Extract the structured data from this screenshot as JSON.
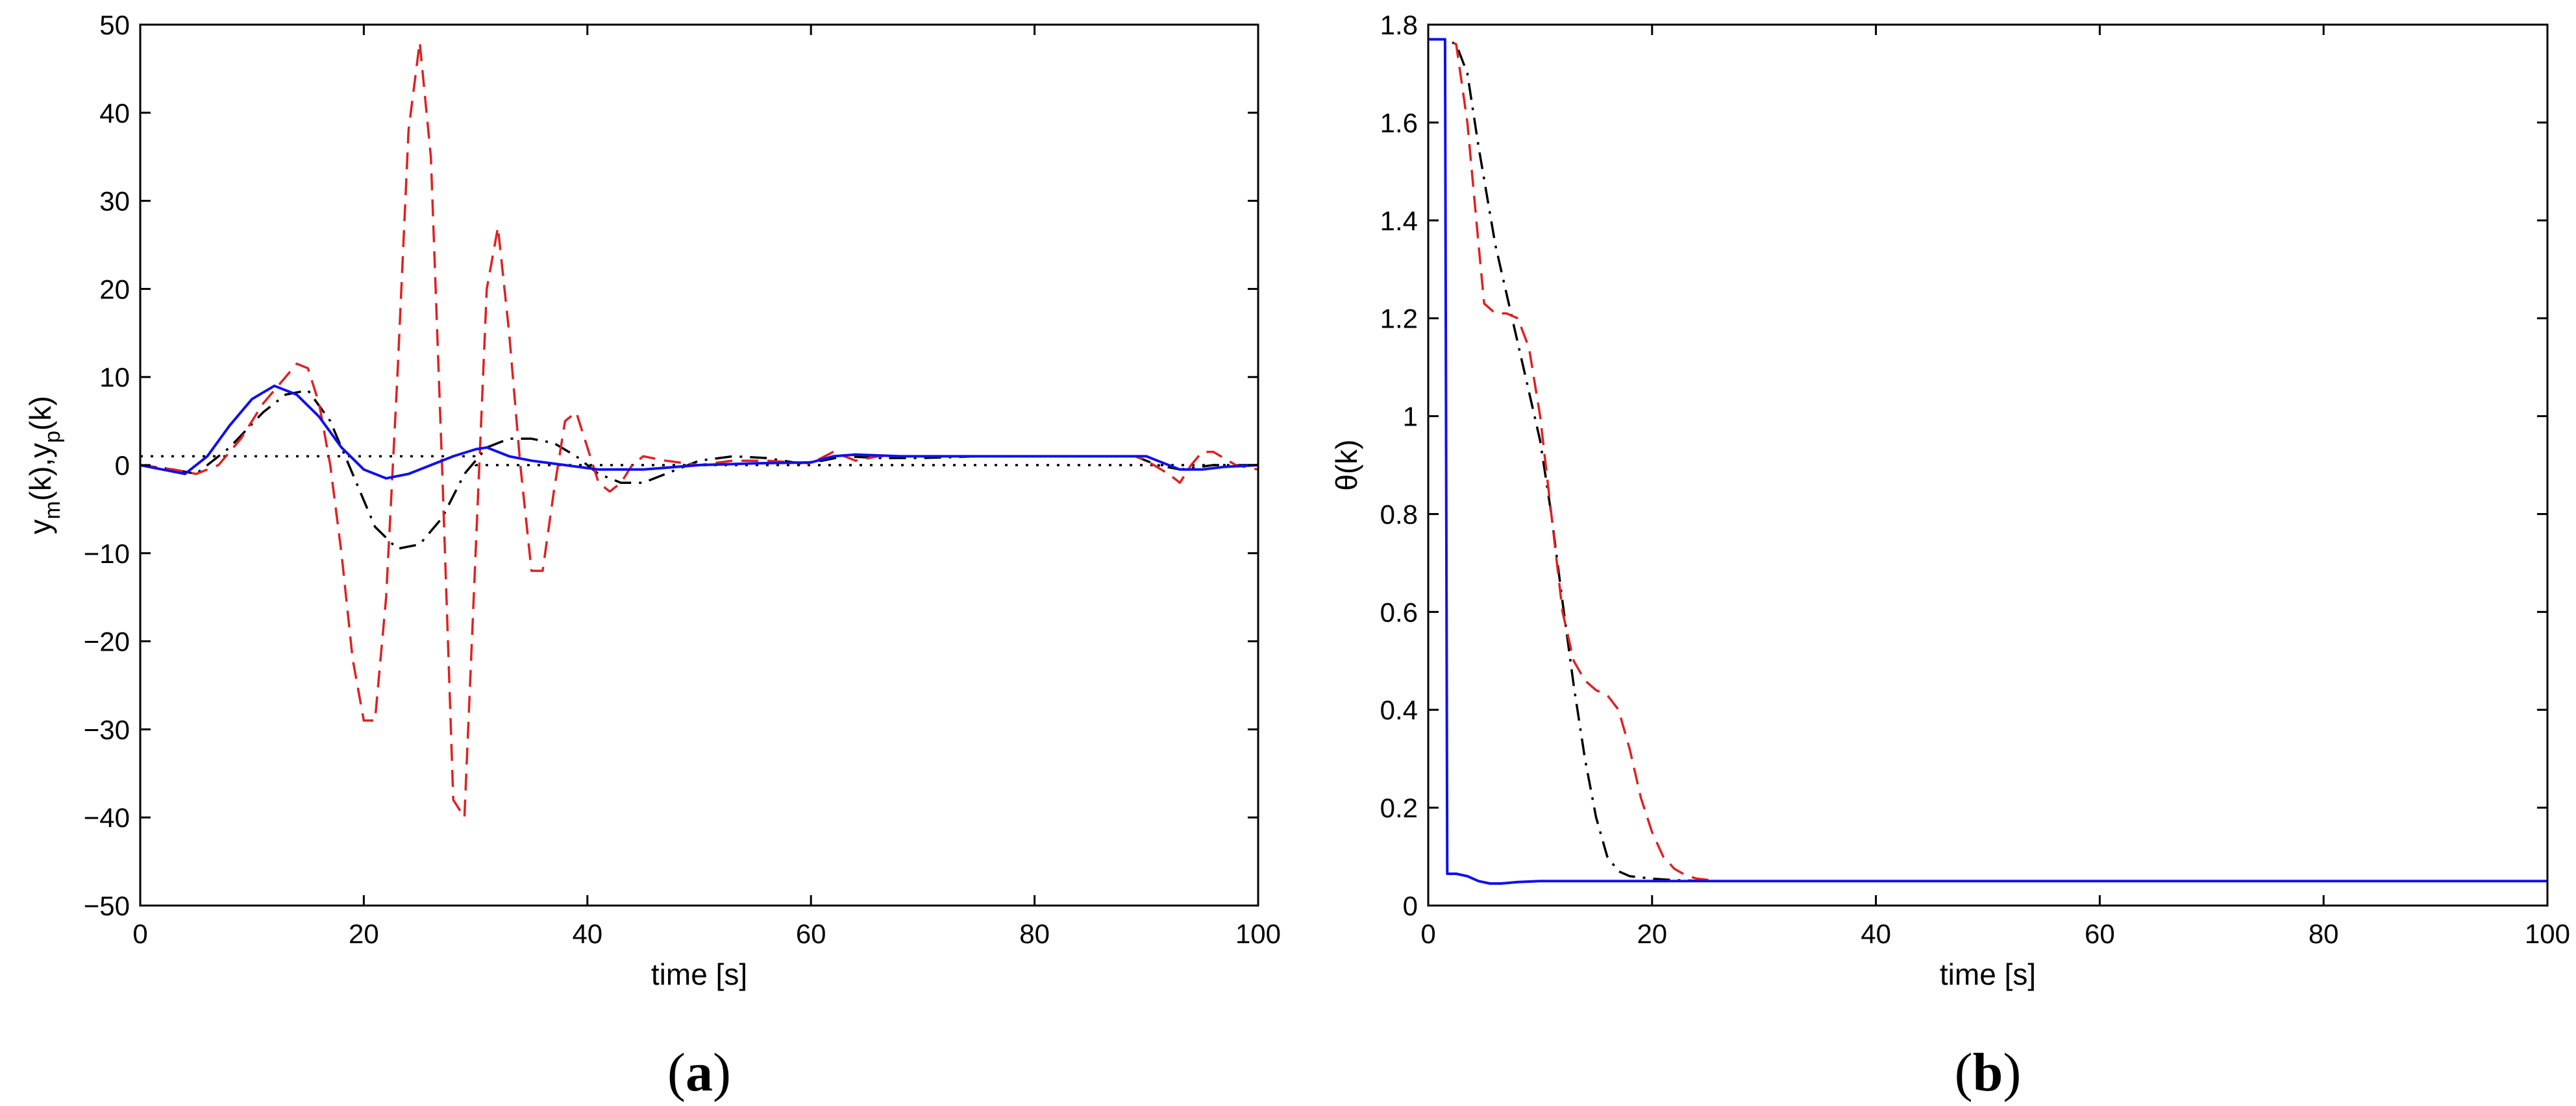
{
  "chart_data": [
    {
      "type": "line",
      "panel_label": "a",
      "xlabel": "time [s]",
      "ylabel_main_1": "y",
      "ylabel_sub_1": "m",
      "ylabel_main_2": "(k),y",
      "ylabel_sub_2": "p",
      "ylabel_main_3": "(k)",
      "xlim": [
        0,
        100
      ],
      "ylim": [
        -50,
        50
      ],
      "xticks": [
        "0",
        "20",
        "40",
        "60",
        "80",
        "100"
      ],
      "yticks": [
        "-50",
        "-40",
        "-30",
        "-20",
        "-10",
        "0",
        "10",
        "20",
        "30",
        "40",
        "50"
      ],
      "grid": false,
      "series": [
        {
          "color": "#000000",
          "style": "dotted",
          "x": [
            0,
            29.9,
            30,
            90,
            100
          ],
          "y": [
            1,
            1,
            0,
            0,
            0
          ]
        },
        {
          "color": "#000000",
          "style": "dashdot",
          "x": [
            0,
            3,
            5,
            8,
            11,
            13,
            15,
            17,
            19,
            21,
            23,
            25,
            27,
            29,
            31,
            33,
            35,
            37,
            39,
            41,
            43,
            45,
            47,
            50,
            53,
            56,
            59,
            61,
            63,
            66,
            70,
            75,
            80,
            85,
            89,
            90,
            91,
            93,
            96,
            100
          ],
          "y": [
            0,
            -0.5,
            -1,
            2,
            6,
            8,
            8.5,
            5,
            -1,
            -7,
            -9.5,
            -9,
            -6,
            -1,
            2,
            3,
            3,
            2.5,
            1,
            -1,
            -2,
            -2,
            -1,
            0.5,
            1,
            0.8,
            0.2,
            0.5,
            1,
            0.8,
            0.8,
            1,
            1,
            1,
            1,
            0.5,
            0,
            -0.5,
            0,
            0
          ]
        },
        {
          "color": "#e02020",
          "style": "dashed",
          "x": [
            0,
            3,
            5,
            7,
            9,
            11,
            13,
            14,
            15,
            16,
            17,
            18,
            19,
            20,
            21,
            22,
            23,
            24,
            25,
            26,
            27,
            28,
            29,
            30,
            31,
            32,
            33,
            34,
            35,
            36,
            37,
            38,
            39,
            40,
            41,
            42,
            43,
            44,
            45,
            47,
            50,
            53,
            56,
            60,
            62,
            64,
            66,
            70,
            75,
            80,
            85,
            89,
            90,
            92,
            93,
            94,
            95,
            96,
            98,
            100
          ],
          "y": [
            0,
            -0.5,
            -1,
            0,
            3,
            7,
            10,
            11.5,
            11,
            7,
            0,
            -10,
            -22,
            -29,
            -29,
            -15,
            10,
            38,
            48,
            35,
            0,
            -38,
            -40,
            -10,
            20,
            27,
            15,
            0,
            -12,
            -12,
            -3,
            5,
            6,
            2,
            -2,
            -3,
            -2,
            0,
            1,
            0.5,
            0,
            0.5,
            0.5,
            0.2,
            1.5,
            0.5,
            1,
            1,
            1,
            1,
            1,
            1,
            0.5,
            -1,
            -2,
            0,
            1.5,
            1.5,
            0,
            -0.5
          ]
        },
        {
          "color": "#1010ee",
          "style": "solid",
          "x": [
            0,
            2,
            4,
            6,
            8,
            10,
            12,
            14,
            16,
            18,
            20,
            22,
            24,
            26,
            28,
            30,
            31,
            33,
            35,
            38,
            41,
            45,
            50,
            55,
            60,
            62,
            64,
            68,
            72,
            77,
            82,
            87,
            90,
            91,
            93,
            95,
            97,
            100
          ],
          "y": [
            0,
            -0.5,
            -1,
            1,
            4.5,
            7.5,
            9,
            8,
            5.5,
            2,
            -0.5,
            -1.5,
            -1,
            0,
            1,
            1.8,
            2,
            1,
            0.5,
            0,
            -0.5,
            -0.5,
            0,
            0.2,
            0.3,
            1,
            1.2,
            1,
            1,
            1,
            1,
            1,
            1,
            0.5,
            -0.5,
            -0.5,
            -0.2,
            0
          ]
        }
      ]
    },
    {
      "type": "line",
      "panel_label": "b",
      "xlabel": "time [s]",
      "ylabel": "θ(k)",
      "xlim": [
        0,
        100
      ],
      "ylim": [
        0,
        1.8
      ],
      "xticks": [
        "0",
        "20",
        "40",
        "60",
        "80",
        "100"
      ],
      "yticks": [
        "0",
        "0.2",
        "0.4",
        "0.6",
        "0.8",
        "1",
        "1.2",
        "1.4",
        "1.6",
        "1.8"
      ],
      "grid": false,
      "series": [
        {
          "color": "#000000",
          "style": "dashdot",
          "x": [
            0,
            1.5,
            2.5,
            3.5,
            4.5,
            6,
            8,
            10,
            11,
            12,
            13,
            14,
            15,
            16,
            17,
            18,
            20,
            22,
            25,
            30,
            100
          ],
          "y": [
            1.77,
            1.77,
            1.76,
            1.7,
            1.55,
            1.35,
            1.15,
            0.95,
            0.8,
            0.62,
            0.45,
            0.3,
            0.18,
            0.1,
            0.07,
            0.06,
            0.055,
            0.052,
            0.05,
            0.05,
            0.05
          ]
        },
        {
          "color": "#e02020",
          "style": "dashed",
          "x": [
            0,
            1.5,
            2.5,
            3.5,
            4.5,
            5,
            6,
            7,
            8,
            9,
            10,
            11,
            12,
            13,
            14,
            15,
            16,
            17,
            18,
            19,
            20,
            21,
            22,
            23,
            24,
            26,
            30,
            100
          ],
          "y": [
            1.77,
            1.77,
            1.76,
            1.6,
            1.35,
            1.23,
            1.21,
            1.21,
            1.2,
            1.14,
            1.0,
            0.8,
            0.6,
            0.5,
            0.46,
            0.44,
            0.43,
            0.4,
            0.32,
            0.22,
            0.15,
            0.1,
            0.075,
            0.062,
            0.055,
            0.05,
            0.05,
            0.05
          ]
        },
        {
          "color": "#1010ee",
          "style": "solid",
          "x": [
            0,
            1.5,
            1.7,
            2.5,
            3.5,
            4.5,
            5.5,
            6.5,
            8,
            10,
            100
          ],
          "y": [
            1.77,
            1.77,
            0.065,
            0.065,
            0.06,
            0.05,
            0.045,
            0.045,
            0.048,
            0.05,
            0.05
          ]
        }
      ]
    }
  ]
}
